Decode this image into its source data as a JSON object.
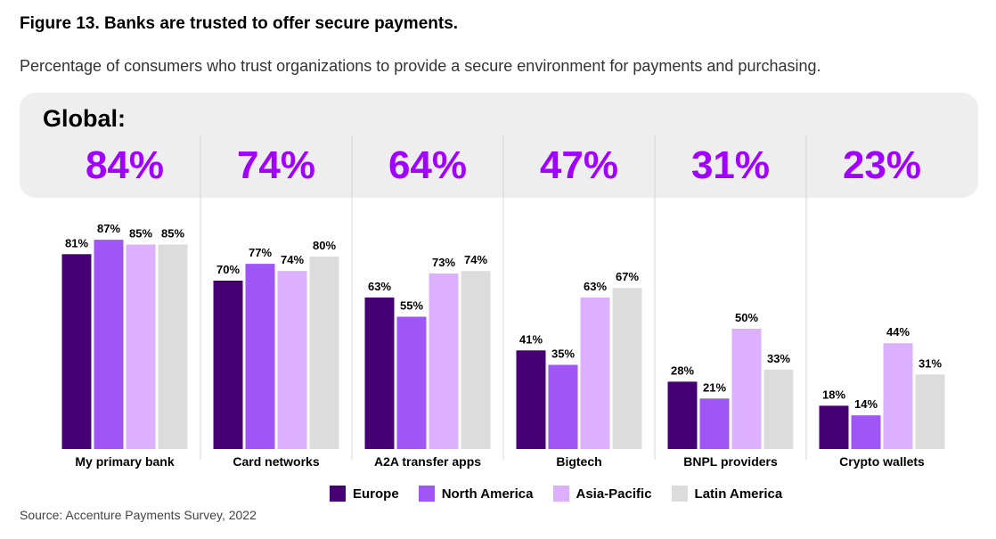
{
  "title": "Figure 13. Banks are trusted to offer secure payments.",
  "subtitle": "Percentage of consumers who trust organizations to provide a secure environment for payments and purchasing.",
  "global_label": "Global:",
  "source": "Source: Accenture Payments Survey, 2022",
  "colors": {
    "Europe": "#460073",
    "North America": "#a055f5",
    "Asia-Pacific": "#dcafff",
    "Latin America": "#dcdcdc",
    "global_text": "#a100ff"
  },
  "chart_data": {
    "type": "bar",
    "categories": [
      "My primary bank",
      "Card networks",
      "A2A transfer apps",
      "Bigtech",
      "BNPL providers",
      "Crypto wallets"
    ],
    "global": [
      "84%",
      "74%",
      "64%",
      "47%",
      "31%",
      "23%"
    ],
    "series": [
      {
        "name": "Europe",
        "values": [
          81,
          70,
          63,
          41,
          28,
          18
        ]
      },
      {
        "name": "North America",
        "values": [
          87,
          77,
          55,
          35,
          21,
          14
        ]
      },
      {
        "name": "Asia-Pacific",
        "values": [
          85,
          74,
          73,
          63,
          50,
          44
        ]
      },
      {
        "name": "Latin America",
        "values": [
          85,
          80,
          74,
          67,
          33,
          31
        ]
      }
    ],
    "unit": "%",
    "ylim": [
      0,
      100
    ],
    "legend_position": "bottom-center",
    "grid": false
  }
}
